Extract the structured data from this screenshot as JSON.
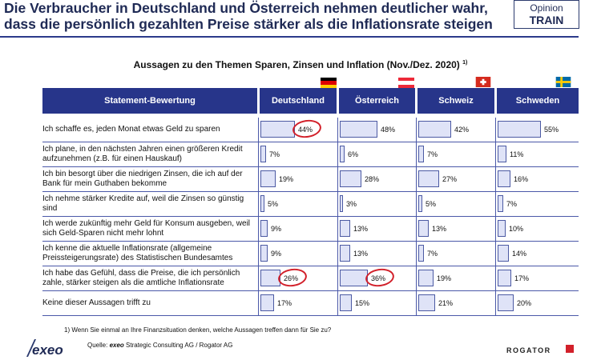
{
  "headline": {
    "line1": "Die Verbraucher in Deutschland und Österreich nehmen deutlicher wahr,",
    "line2": "dass die persönlich gezahlten Preise stärker als die Inflationsrate steigen"
  },
  "brand": {
    "line1": "Opinion",
    "line2": "TRAIN"
  },
  "chart_data": {
    "type": "table",
    "title": "Aussagen zu den Themen Sparen, Zinsen und Inflation (Nov./Dez. 2020)",
    "title_footnote_mark": "1)",
    "statement_header": "Statement-Bewertung",
    "countries": [
      "Deutschland",
      "Österreich",
      "Schweiz",
      "Schweden"
    ],
    "unit": "%",
    "rows": [
      {
        "statement": "Ich schaffe es, jeden Monat etwas Geld zu sparen",
        "values": [
          44,
          48,
          42,
          55
        ]
      },
      {
        "statement": "Ich plane, in den nächsten Jahren einen größeren Kredit aufzunehmen (z.B. für einen Hauskauf)",
        "values": [
          7,
          6,
          7,
          11
        ]
      },
      {
        "statement": "Ich bin besorgt über die niedrigen Zinsen, die ich auf der Bank für mein Guthaben bekomme",
        "values": [
          19,
          28,
          27,
          16
        ]
      },
      {
        "statement": "Ich nehme stärker Kredite auf, weil die Zinsen so günstig sind",
        "values": [
          5,
          3,
          5,
          7
        ]
      },
      {
        "statement": "Ich werde zukünftig mehr Geld für Konsum ausgeben, weil sich Geld-Sparen nicht mehr lohnt",
        "values": [
          9,
          13,
          13,
          10
        ]
      },
      {
        "statement": "Ich kenne die aktuelle Inflationsrate (allgemeine Preissteigerungsrate) des Statistischen Bundesamtes",
        "values": [
          9,
          13,
          7,
          14
        ]
      },
      {
        "statement": "Ich habe das Gefühl, dass die Preise, die ich persönlich zahle, stärker steigen als die amtliche Inflationsrate",
        "values": [
          26,
          36,
          19,
          17
        ]
      },
      {
        "statement": "Keine dieser Aussagen trifft zu",
        "values": [
          17,
          15,
          21,
          20
        ]
      }
    ],
    "highlighted": [
      {
        "row": 0,
        "country": 0
      },
      {
        "row": 6,
        "country": 0
      },
      {
        "row": 6,
        "country": 1
      }
    ],
    "highlight_color": "#d2202a",
    "header_color": "#27358a",
    "bar_color": "#dfe3f7"
  },
  "footnote": "1) Wenn Sie einmal an Ihre Finanzsituation denken, welche Aussagen treffen dann für Sie zu?",
  "source": {
    "prefix": "Quelle: ",
    "company": "exeo",
    "rest": " Strategic Consulting AG / Rogator AG"
  },
  "logos": {
    "left": "exeo",
    "right": "ROGATOR"
  }
}
